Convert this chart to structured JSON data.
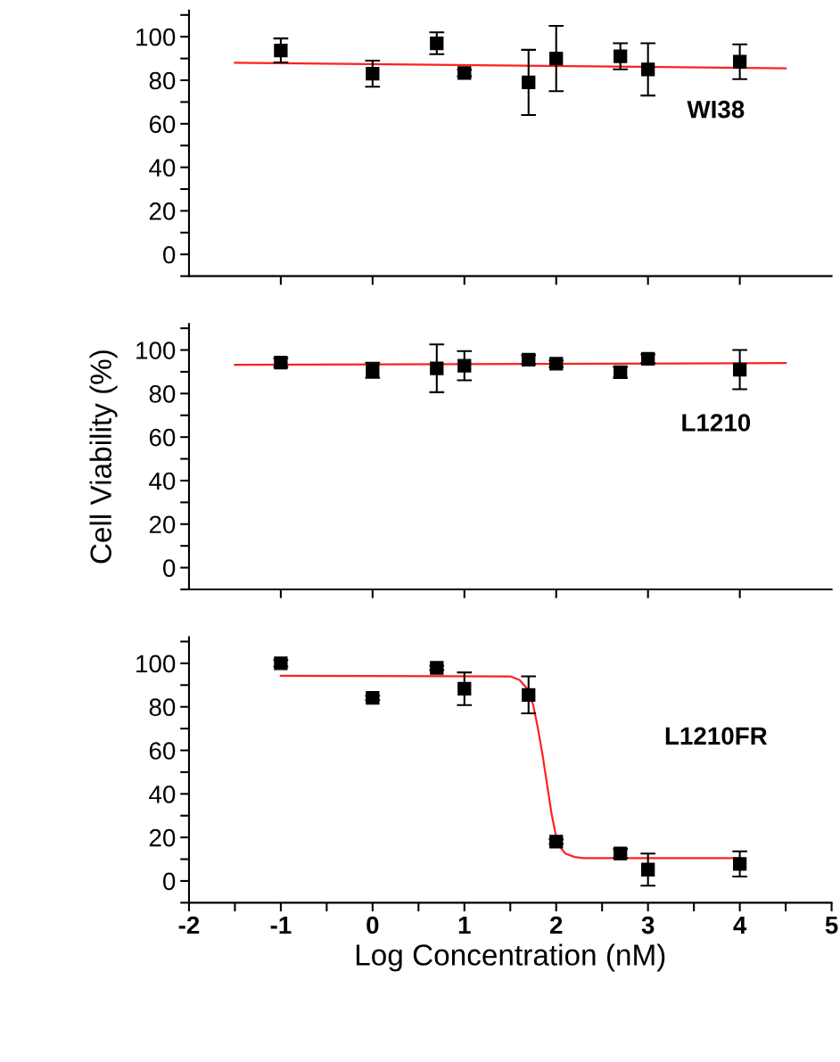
{
  "chart_data": [
    {
      "type": "scatter",
      "annotations": [
        "WI38"
      ],
      "xlim": [
        -2,
        5
      ],
      "xticks": [
        {
          "value": -1,
          "label": null
        },
        {
          "value": 0,
          "label": null
        },
        {
          "value": 1,
          "label": null
        },
        {
          "value": 2,
          "label": null
        },
        {
          "value": 3,
          "label": null
        },
        {
          "value": 4,
          "label": null
        }
      ],
      "ylim": [
        -10,
        112
      ],
      "yticks": [
        {
          "value": -10,
          "label": null
        },
        0,
        {
          "value": 10,
          "label": null
        },
        20,
        {
          "value": 30,
          "label": null
        },
        40,
        {
          "value": 50,
          "label": null
        },
        60,
        {
          "value": 70,
          "label": null
        },
        80,
        {
          "value": 90,
          "label": null
        },
        100,
        {
          "value": 110,
          "label": null
        }
      ],
      "tick_labels": "y",
      "series": [
        {
          "marker": "square",
          "color": "#000000",
          "x": [
            -1,
            0,
            0.699,
            1,
            1.699,
            2,
            2.699,
            3,
            4
          ],
          "values": [
            93.7,
            83,
            97,
            83.3,
            79,
            90,
            91,
            85,
            88.5
          ],
          "errors": [
            5.5,
            6,
            5,
            1.5,
            15,
            15,
            6,
            12,
            8
          ]
        },
        {
          "type": "line",
          "color": "#ff2020",
          "x": [
            -1.5,
            4.5
          ],
          "values": [
            88,
            85.5
          ]
        }
      ]
    },
    {
      "type": "scatter",
      "annotations": [
        "L1210"
      ],
      "ylabel": "Cell Viability (%)",
      "xlim": [
        -2,
        5
      ],
      "xticks": [
        {
          "value": -1,
          "label": null
        },
        {
          "value": 0,
          "label": null
        },
        {
          "value": 1,
          "label": null
        },
        {
          "value": 2,
          "label": null
        },
        {
          "value": 3,
          "label": null
        },
        {
          "value": 4,
          "label": null
        }
      ],
      "ylim": [
        -10,
        112
      ],
      "yticks": [
        {
          "value": -10,
          "label": null
        },
        0,
        {
          "value": 10,
          "label": null
        },
        20,
        {
          "value": 30,
          "label": null
        },
        40,
        {
          "value": 50,
          "label": null
        },
        60,
        {
          "value": 70,
          "label": null
        },
        80,
        {
          "value": 90,
          "label": null
        },
        100,
        {
          "value": 110,
          "label": null
        }
      ],
      "tick_labels": "y",
      "series": [
        {
          "marker": "square",
          "color": "#000000",
          "x": [
            -1,
            0,
            0.699,
            1,
            1.699,
            2,
            2.699,
            3,
            4
          ],
          "values": [
            94.2,
            90.7,
            91.6,
            92.8,
            95.6,
            93.7,
            89.8,
            96,
            91
          ],
          "errors": [
            2,
            3.5,
            11,
            6.7,
            2,
            1.5,
            2.5,
            2,
            9
          ]
        },
        {
          "type": "line",
          "color": "#ff2020",
          "x": [
            -1.5,
            4.5
          ],
          "values": [
            93.2,
            94
          ]
        }
      ]
    },
    {
      "type": "scatter",
      "annotations": [
        "L1210FR"
      ],
      "xlabel": "Log Concentration (nM)",
      "xlim": [
        -2,
        5
      ],
      "xticks": [
        -2,
        {
          "value": -1.5,
          "label": null
        },
        -1,
        {
          "value": -0.5,
          "label": null
        },
        0,
        {
          "value": 0.5,
          "label": null
        },
        1,
        {
          "value": 1.5,
          "label": null
        },
        2,
        {
          "value": 2.5,
          "label": null
        },
        3,
        {
          "value": 3.5,
          "label": null
        },
        4,
        {
          "value": 4.5,
          "label": null
        },
        5
      ],
      "ylim": [
        -10,
        112
      ],
      "yticks": [
        {
          "value": -10,
          "label": null
        },
        0,
        {
          "value": 10,
          "label": null
        },
        20,
        {
          "value": 30,
          "label": null
        },
        40,
        {
          "value": 50,
          "label": null
        },
        60,
        {
          "value": 70,
          "label": null
        },
        80,
        {
          "value": 90,
          "label": null
        },
        100,
        {
          "value": 110,
          "label": null
        }
      ],
      "series": [
        {
          "marker": "square",
          "color": "#000000",
          "x": [
            -1,
            0,
            0.699,
            1,
            1.699,
            2,
            2.699,
            3,
            4
          ],
          "values": [
            100,
            84.1,
            97.9,
            88.3,
            85.5,
            18.1,
            12.6,
            5.2,
            7.8
          ],
          "errors": [
            1.5,
            1,
            1,
            7.5,
            8.5,
            1,
            2,
            7.4,
            5.8
          ]
        },
        {
          "type": "line",
          "color": "#ff2020",
          "x": [
            -1,
            1.5,
            1.6,
            1.7,
            1.75,
            1.8,
            1.85,
            1.9,
            1.95,
            2.0,
            2.05,
            2.1,
            2.2,
            2.3,
            4
          ],
          "values": [
            94.3,
            94,
            92.4,
            87.6,
            80.7,
            70.3,
            58.3,
            44.5,
            30.7,
            20.3,
            15.2,
            12.6,
            11,
            10.5,
            10.5
          ]
        }
      ]
    }
  ]
}
